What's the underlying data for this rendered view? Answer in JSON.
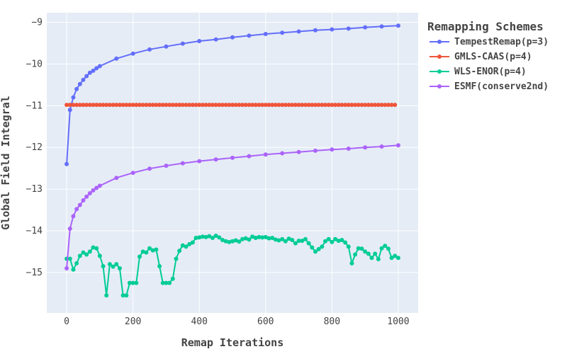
{
  "chart_data": {
    "type": "line",
    "xlabel": "Remap Iterations",
    "ylabel": "Global Field Integral",
    "xlim": [
      -60,
      1060
    ],
    "ylim": [
      -15.97,
      -8.77
    ],
    "xticks": [
      0,
      200,
      400,
      600,
      800,
      1000
    ],
    "xtick_labels": [
      "0",
      "200",
      "400",
      "600",
      "800",
      "1000"
    ],
    "yticks": [
      -9,
      -10,
      -11,
      -12,
      -13,
      -14,
      -15
    ],
    "ytick_labels": [
      "−9",
      "−10",
      "−11",
      "−12",
      "−13",
      "−14",
      "−15"
    ],
    "grid": true,
    "background": "#e5ecf6",
    "legend_title": "Remapping Schemes",
    "legend_position": "right",
    "series": [
      {
        "name": "TempestRemap(p=3)",
        "color": "#636efa",
        "x": [
          0,
          10,
          20,
          30,
          40,
          50,
          60,
          70,
          80,
          90,
          100,
          150,
          200,
          250,
          300,
          350,
          400,
          450,
          500,
          550,
          600,
          650,
          700,
          750,
          800,
          850,
          900,
          950,
          1000
        ],
        "y": [
          -12.4,
          -11.1,
          -10.8,
          -10.6,
          -10.48,
          -10.38,
          -10.29,
          -10.21,
          -10.16,
          -10.1,
          -10.05,
          -9.87,
          -9.75,
          -9.65,
          -9.58,
          -9.51,
          -9.45,
          -9.41,
          -9.36,
          -9.32,
          -9.28,
          -9.25,
          -9.22,
          -9.19,
          -9.17,
          -9.15,
          -9.12,
          -9.1,
          -9.08
        ]
      },
      {
        "name": "GMLS-CAAS(p=4)",
        "color": "#ef553b",
        "x": [
          0,
          990
        ],
        "y": [
          -10.98,
          -10.98
        ]
      },
      {
        "name": "WLS-ENOR(p=4)",
        "color": "#00cc96",
        "x": [
          0,
          10,
          20,
          30,
          40,
          50,
          60,
          70,
          80,
          90,
          100,
          110,
          120,
          130,
          140,
          150,
          160,
          170,
          180,
          190,
          200,
          210,
          220,
          230,
          240,
          250,
          260,
          270,
          280,
          290,
          300,
          310,
          320,
          330,
          340,
          350,
          360,
          370,
          380,
          390,
          400,
          410,
          420,
          430,
          440,
          450,
          460,
          470,
          480,
          490,
          500,
          510,
          520,
          530,
          540,
          550,
          560,
          570,
          580,
          590,
          600,
          610,
          620,
          630,
          640,
          650,
          660,
          670,
          680,
          690,
          700,
          710,
          720,
          730,
          740,
          750,
          760,
          770,
          780,
          790,
          800,
          810,
          820,
          830,
          840,
          850,
          860,
          870,
          880,
          890,
          900,
          910,
          920,
          930,
          940,
          950,
          960,
          970,
          980,
          990,
          1000
        ],
        "y": [
          -14.67,
          -14.67,
          -14.93,
          -14.78,
          -14.6,
          -14.52,
          -14.57,
          -14.5,
          -14.4,
          -14.42,
          -14.6,
          -14.85,
          -15.55,
          -14.8,
          -14.86,
          -14.8,
          -14.9,
          -15.55,
          -15.55,
          -15.25,
          -15.25,
          -15.25,
          -14.62,
          -14.5,
          -14.52,
          -14.42,
          -14.47,
          -14.45,
          -14.85,
          -15.25,
          -15.25,
          -15.25,
          -15.15,
          -14.67,
          -14.48,
          -14.35,
          -14.38,
          -14.32,
          -14.28,
          -14.17,
          -14.16,
          -14.14,
          -14.15,
          -14.13,
          -14.17,
          -14.12,
          -14.16,
          -14.22,
          -14.25,
          -14.27,
          -14.25,
          -14.23,
          -14.26,
          -14.2,
          -14.18,
          -14.21,
          -14.14,
          -14.17,
          -14.15,
          -14.16,
          -14.15,
          -14.18,
          -14.17,
          -14.21,
          -14.23,
          -14.2,
          -14.25,
          -14.19,
          -14.22,
          -14.3,
          -14.24,
          -14.24,
          -14.2,
          -14.3,
          -14.4,
          -14.5,
          -14.44,
          -14.38,
          -14.25,
          -14.2,
          -14.27,
          -14.2,
          -14.24,
          -14.22,
          -14.28,
          -14.38,
          -14.78,
          -14.57,
          -14.42,
          -14.43,
          -14.5,
          -14.55,
          -14.65,
          -14.55,
          -14.68,
          -14.42,
          -14.36,
          -14.43,
          -14.65,
          -14.6,
          -14.65
        ]
      },
      {
        "name": "ESMF(conserve2nd)",
        "color": "#ab63fa",
        "x": [
          0,
          10,
          20,
          30,
          40,
          50,
          60,
          70,
          80,
          90,
          100,
          150,
          200,
          250,
          300,
          350,
          400,
          450,
          500,
          550,
          600,
          650,
          700,
          750,
          800,
          850,
          900,
          950,
          1000
        ],
        "y": [
          -14.9,
          -13.95,
          -13.65,
          -13.48,
          -13.38,
          -13.27,
          -13.18,
          -13.1,
          -13.03,
          -12.97,
          -12.92,
          -12.73,
          -12.61,
          -12.51,
          -12.44,
          -12.38,
          -12.33,
          -12.29,
          -12.25,
          -12.21,
          -12.17,
          -12.14,
          -12.11,
          -12.08,
          -12.05,
          -12.03,
          -12.0,
          -11.98,
          -11.95
        ]
      }
    ]
  }
}
